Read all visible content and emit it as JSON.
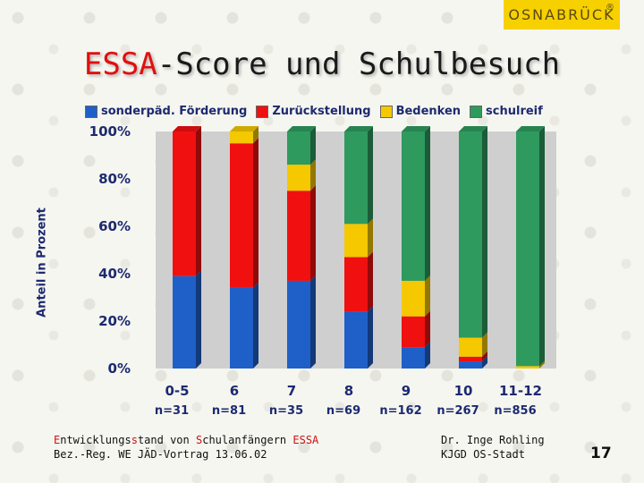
{
  "logo": {
    "text": "OSNABRÜCK",
    "mark": "®"
  },
  "title": {
    "accent": "ESSA",
    "rest": "-Score und Schulbesuch"
  },
  "chart_data": {
    "type": "bar",
    "stacked": true,
    "title": "ESSA-Score und Schulbesuch",
    "ylabel": "Anteil in Prozent",
    "xlabel": "",
    "ylim": [
      0,
      100
    ],
    "yticks": [
      "0%",
      "20%",
      "40%",
      "60%",
      "80%",
      "100%"
    ],
    "categories": [
      "0-5",
      "6",
      "7",
      "8",
      "9",
      "10",
      "11-12"
    ],
    "n_labels": [
      "n=31",
      "n=81",
      "n=35",
      "n=69",
      "n=162",
      "n=267",
      "n=856"
    ],
    "legend_position": "top",
    "grid": false,
    "series": [
      {
        "name": "sonderpäd. Förderung",
        "color": "#1f5fc8",
        "values": [
          39,
          34,
          37,
          24,
          9,
          3,
          0
        ]
      },
      {
        "name": "Zurückstellung",
        "color": "#f01010",
        "values": [
          61,
          61,
          38,
          23,
          13,
          2,
          0
        ]
      },
      {
        "name": "Bedenken",
        "color": "#f5c800",
        "values": [
          0,
          5,
          11,
          14,
          15,
          8,
          1
        ]
      },
      {
        "name": "schulreif",
        "color": "#2e9a5e",
        "values": [
          0,
          0,
          14,
          39,
          63,
          87,
          99
        ]
      }
    ]
  },
  "footer": {
    "line1_parts": [
      "E",
      "ntwicklungs",
      "s",
      "tand von ",
      "S",
      "chulanfängern ",
      "ESSA"
    ],
    "line2": "Bez.-Reg. WE JÄD-Vortrag 13.06.02",
    "author_line1": "Dr. Inge Rohling",
    "author_line2": "KJGD OS-Stadt",
    "page": "17"
  }
}
